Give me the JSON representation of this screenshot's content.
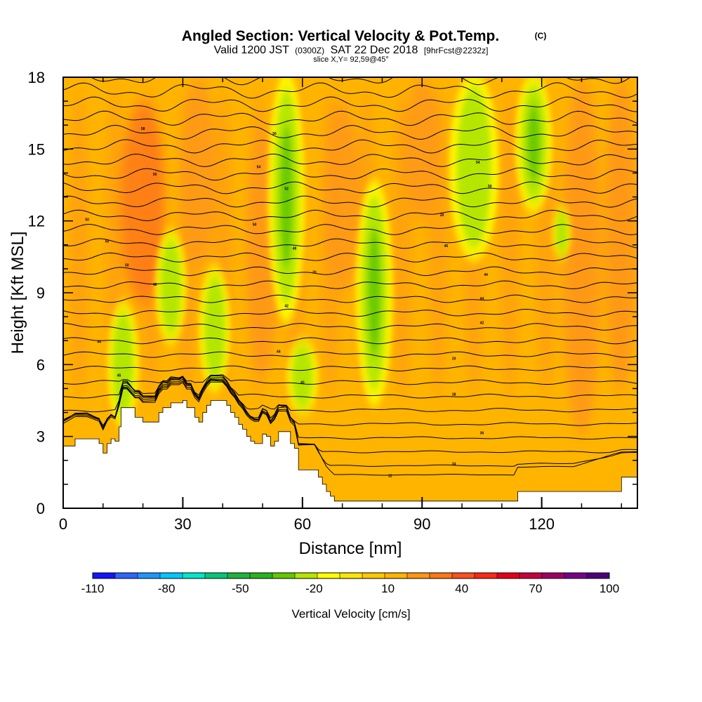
{
  "chart_data": {
    "type": "heatmap",
    "title": "Angled Section: Vertical Velocity & Pot.Temp.",
    "title_unit": "(C)",
    "subtitle_valid": "Valid 1200 JST",
    "subtitle_z": "(0300Z)",
    "subtitle_date": "SAT 22 Dec 2018",
    "subtitle_fcst": "[9hrFcst@2232z]",
    "subtitle_slice": "slice X,Y= 92,59@45°",
    "xlabel": "Distance [nm]",
    "ylabel": "Height [Kft MSL]",
    "xlim": [
      0,
      144
    ],
    "ylim": [
      0,
      18
    ],
    "x_ticks": [
      0,
      30,
      60,
      90,
      120
    ],
    "y_ticks": [
      0,
      3,
      6,
      9,
      12,
      15,
      18
    ],
    "colorbar": {
      "title": "Vertical Velocity [cm/s]",
      "min": -110,
      "max": 100,
      "labels": [
        -110,
        -80,
        -50,
        -20,
        10,
        40,
        70,
        100
      ],
      "colors": [
        "#1414ff",
        "#2e64ff",
        "#1e96ff",
        "#00c8ff",
        "#00e6c8",
        "#00c878",
        "#1eb43c",
        "#28b41e",
        "#64c800",
        "#b4e600",
        "#ffff00",
        "#ffe600",
        "#ffc800",
        "#ffb400",
        "#ff9614",
        "#ff7814",
        "#ff501e",
        "#ff2814",
        "#e60014",
        "#c8003c",
        "#a00064",
        "#78008c",
        "#50007a"
      ]
    },
    "terrain_profile": {
      "x": [
        0,
        3,
        6,
        9,
        10,
        11,
        12,
        13,
        14,
        14.5,
        16,
        18,
        19,
        20,
        21,
        23,
        24,
        25,
        26,
        27,
        28,
        29,
        30,
        31,
        32,
        33,
        34,
        35,
        36,
        37,
        38,
        39,
        40,
        41,
        42,
        43,
        44,
        45,
        46,
        47,
        48,
        49,
        50,
        51,
        52,
        53,
        54,
        55,
        56,
        57,
        58,
        59,
        60,
        62,
        63,
        64,
        65,
        66,
        67,
        68,
        70,
        80,
        90,
        100,
        110,
        113,
        114,
        120,
        128,
        140,
        144
      ],
      "y": [
        2.6,
        2.9,
        2.9,
        2.7,
        2.3,
        2.7,
        2.9,
        2.8,
        3.4,
        4.2,
        4.2,
        3.8,
        3.8,
        3.6,
        3.6,
        3.6,
        4.0,
        4.2,
        4.2,
        4.4,
        4.4,
        4.4,
        4.5,
        4.2,
        4.2,
        3.8,
        3.6,
        4.0,
        4.3,
        4.5,
        4.5,
        4.5,
        4.5,
        4.3,
        4.0,
        3.8,
        3.5,
        3.3,
        3.0,
        2.8,
        2.7,
        2.7,
        3.1,
        3.0,
        2.6,
        2.8,
        3.2,
        3.2,
        3.2,
        2.7,
        2.5,
        1.6,
        1.6,
        1.6,
        1.6,
        1.3,
        1.0,
        0.7,
        0.5,
        0.3,
        0.3,
        0.3,
        0.3,
        0.3,
        0.3,
        0.3,
        0.7,
        0.7,
        0.7,
        1.3,
        1.3
      ]
    },
    "isentropes": {
      "count": 30,
      "labels": [
        {
          "text": "58",
          "x": 20,
          "y": 15.8
        },
        {
          "text": "56",
          "x": 53,
          "y": 15.6
        },
        {
          "text": "54",
          "x": 104,
          "y": 14.4
        },
        {
          "text": "50",
          "x": 23,
          "y": 13.9
        },
        {
          "text": "54",
          "x": 49,
          "y": 14.2
        },
        {
          "text": "52",
          "x": 56,
          "y": 13.3
        },
        {
          "text": "50",
          "x": 107,
          "y": 13.4
        },
        {
          "text": "50",
          "x": 6,
          "y": 12.0
        },
        {
          "text": "50",
          "x": 48,
          "y": 11.8
        },
        {
          "text": "20",
          "x": 95,
          "y": 12.2
        },
        {
          "text": "50",
          "x": 11,
          "y": 11.1
        },
        {
          "text": "48",
          "x": 58,
          "y": 10.8
        },
        {
          "text": "46",
          "x": 96,
          "y": 10.9
        },
        {
          "text": "50",
          "x": 16,
          "y": 10.1
        },
        {
          "text": "20",
          "x": 63,
          "y": 9.8
        },
        {
          "text": "44",
          "x": 106,
          "y": 9.7
        },
        {
          "text": "48",
          "x": 23,
          "y": 9.3
        },
        {
          "text": "44",
          "x": 105,
          "y": 8.7
        },
        {
          "text": "42",
          "x": 56,
          "y": 8.4
        },
        {
          "text": "42",
          "x": 105,
          "y": 7.7
        },
        {
          "text": "44",
          "x": 9,
          "y": 6.9
        },
        {
          "text": "44",
          "x": 54,
          "y": 6.5
        },
        {
          "text": "20",
          "x": 98,
          "y": 6.2
        },
        {
          "text": "45",
          "x": 14,
          "y": 5.5
        },
        {
          "text": "40",
          "x": 60,
          "y": 5.2
        },
        {
          "text": "40",
          "x": 24,
          "y": 4.9
        },
        {
          "text": "38",
          "x": 98,
          "y": 4.7
        },
        {
          "text": "10",
          "x": 55,
          "y": 4.2
        },
        {
          "text": "36",
          "x": 105,
          "y": 3.1
        },
        {
          "text": "34",
          "x": 98,
          "y": 1.8
        },
        {
          "text": "12",
          "x": 82,
          "y": 1.3
        }
      ]
    },
    "updraft_bands": [
      {
        "x": 15,
        "y0": 3.5,
        "y1": 8.5,
        "w": 2.5,
        "value": -20
      },
      {
        "x": 27,
        "y0": 7.0,
        "y1": 11.5,
        "w": 2.5,
        "value": -20
      },
      {
        "x": 38,
        "y0": 5.0,
        "y1": 10.0,
        "w": 2.5,
        "value": -20
      },
      {
        "x": 56,
        "y0": 8.0,
        "y1": 18.0,
        "w": 3.0,
        "value": -30
      },
      {
        "x": 60,
        "y0": 4.0,
        "y1": 7.0,
        "w": 2.5,
        "value": -20
      },
      {
        "x": 78,
        "y0": 4.5,
        "y1": 13.5,
        "w": 3.0,
        "value": -30
      },
      {
        "x": 103,
        "y0": 10.5,
        "y1": 18.0,
        "w": 4.0,
        "value": -20
      },
      {
        "x": 118,
        "y0": 12.5,
        "y1": 18.0,
        "w": 3.0,
        "value": -30
      },
      {
        "x": 125,
        "y0": 10.5,
        "y1": 12.5,
        "w": 1.5,
        "value": -20
      }
    ],
    "downdraft_bands": [
      {
        "x": 20,
        "y0": 8.5,
        "y1": 17.0,
        "w": 4.0,
        "value": 30
      },
      {
        "x": 34,
        "y0": 10.0,
        "y1": 18.0,
        "w": 3.0,
        "value": 20
      },
      {
        "x": 50,
        "y0": 5.5,
        "y1": 16.0,
        "w": 3.0,
        "value": 20
      },
      {
        "x": 70,
        "y0": 9.0,
        "y1": 17.0,
        "w": 3.0,
        "value": 20
      },
      {
        "x": 90,
        "y0": 12.0,
        "y1": 18.0,
        "w": 3.0,
        "value": 20
      },
      {
        "x": 130,
        "y0": 3.0,
        "y1": 18.0,
        "w": 3.5,
        "value": 20
      },
      {
        "x": 140,
        "y0": 5.0,
        "y1": 18.0,
        "w": 3.0,
        "value": 20
      }
    ]
  }
}
